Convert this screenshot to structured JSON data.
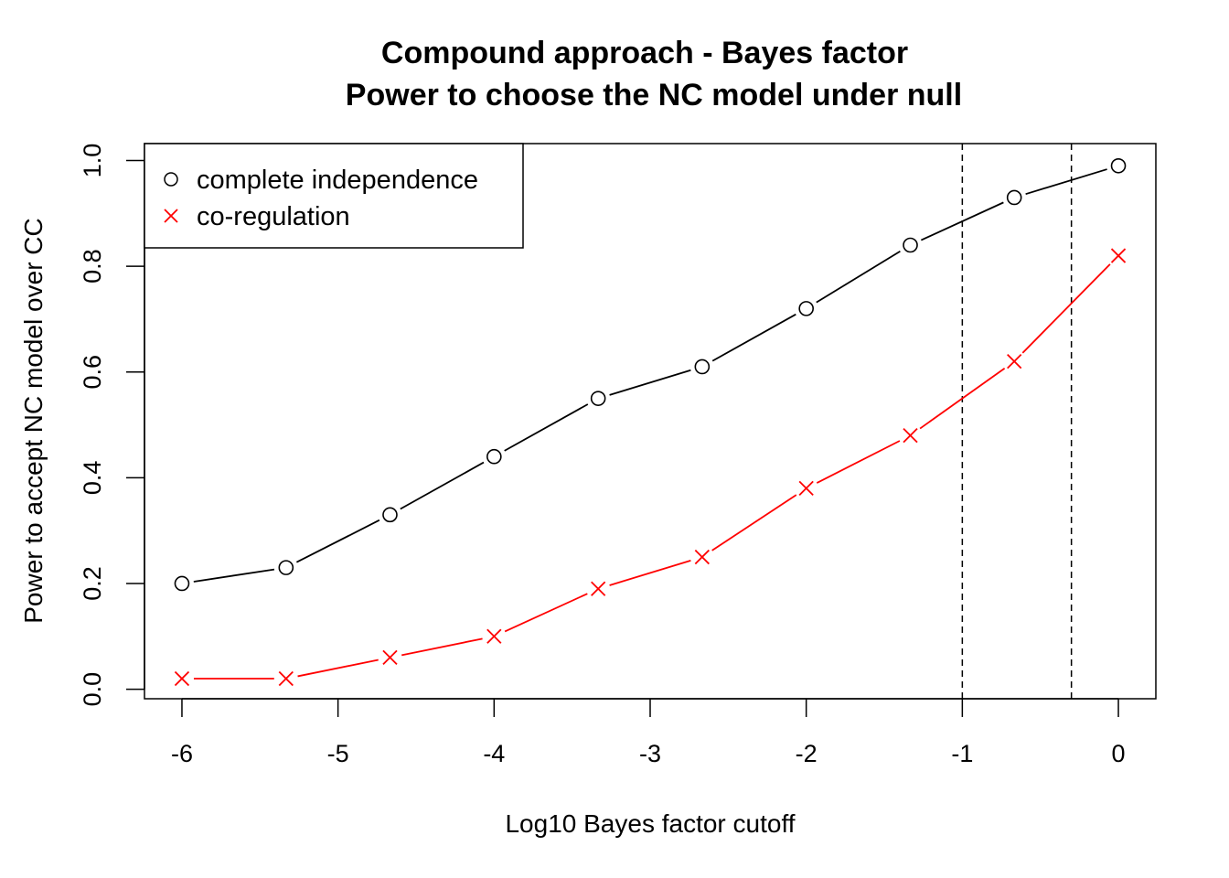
{
  "chart_data": {
    "type": "line",
    "title": "Compound approach - Bayes factor",
    "subtitle": "Power to choose the NC model under null",
    "xlabel": "Log10 Bayes factor cutoff",
    "ylabel": "Power to accept NC model over CC",
    "xlim": [
      -6.24,
      0.24
    ],
    "ylim": [
      -0.018,
      1.032
    ],
    "x_ticks": [
      -6,
      -5,
      -4,
      -3,
      -2,
      -1,
      0
    ],
    "x_tick_labels": [
      "-6",
      "-5",
      "-4",
      "-3",
      "-2",
      "-1",
      "0"
    ],
    "y_ticks": [
      0.0,
      0.2,
      0.4,
      0.6,
      0.8,
      1.0
    ],
    "y_tick_labels": [
      "0.0",
      "0.2",
      "0.4",
      "0.6",
      "0.8",
      "1.0"
    ],
    "x": [
      -6,
      -5.333,
      -4.667,
      -4,
      -3.333,
      -2.667,
      -2,
      -1.333,
      -0.667,
      0
    ],
    "series": [
      {
        "name": "complete independence",
        "color": "#000000",
        "marker": "circle",
        "values": [
          0.2,
          0.23,
          0.33,
          0.44,
          0.55,
          0.61,
          0.72,
          0.84,
          0.93,
          0.99
        ]
      },
      {
        "name": "co-regulation",
        "color": "#ff0000",
        "marker": "cross",
        "values": [
          0.02,
          0.02,
          0.06,
          0.1,
          0.19,
          0.25,
          0.38,
          0.48,
          0.62,
          0.82
        ]
      }
    ],
    "vlines": [
      -1,
      -0.301
    ],
    "legend_position": "top-left",
    "grid": false
  }
}
